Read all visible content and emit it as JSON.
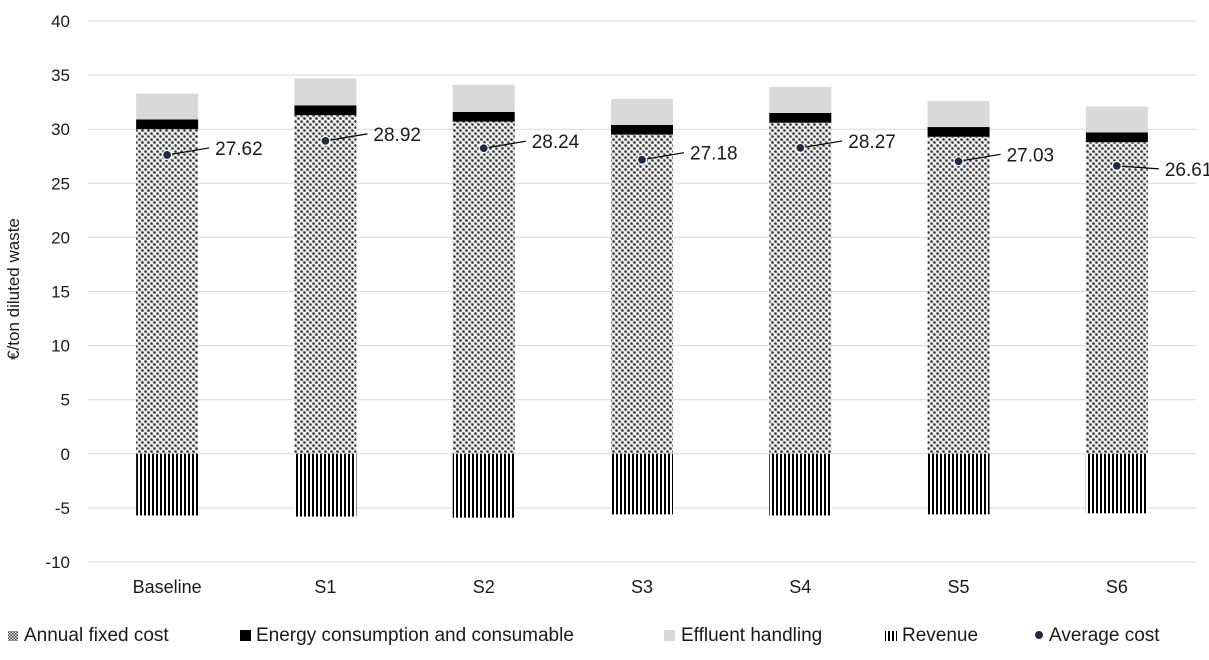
{
  "chart_data": {
    "type": "bar",
    "stacked": true,
    "categories": [
      "Baseline",
      "S1",
      "S2",
      "S3",
      "S4",
      "S5",
      "S6"
    ],
    "ylabel": "€/ton diluted waste",
    "xlabel": "",
    "ylim": [
      -10,
      40
    ],
    "yticks": [
      "-10",
      "-5",
      "0",
      "5",
      "10",
      "15",
      "20",
      "25",
      "30",
      "35",
      "40"
    ],
    "grid": true,
    "legend_position": "bottom",
    "series": [
      {
        "name": "Annual fixed cost",
        "values": [
          30.0,
          31.3,
          30.7,
          29.5,
          30.6,
          29.3,
          28.8
        ],
        "color": "#555555",
        "pattern": "crosshatch"
      },
      {
        "name": "Energy consumption and consumable",
        "values": [
          0.9,
          0.9,
          0.9,
          0.9,
          0.9,
          0.9,
          0.9
        ],
        "color": "#000000",
        "pattern": "solid"
      },
      {
        "name": "Effluent handling",
        "values": [
          2.4,
          2.5,
          2.5,
          2.4,
          2.4,
          2.4,
          2.4
        ],
        "color": "#d9d9d9",
        "pattern": "solid"
      },
      {
        "name": "Revenue",
        "values": [
          -5.7,
          -5.8,
          -5.9,
          -5.6,
          -5.7,
          -5.6,
          -5.5
        ],
        "color": "#000000",
        "pattern": "vertical-stripes"
      }
    ],
    "average_cost": {
      "name": "Average cost",
      "values": [
        27.62,
        28.92,
        28.24,
        27.18,
        28.27,
        27.03,
        26.61
      ],
      "labels": [
        "27.62",
        "28.92",
        "28.24",
        "27.18",
        "28.27",
        "27.03",
        "26.61"
      ],
      "color": "#1f2a44"
    }
  }
}
